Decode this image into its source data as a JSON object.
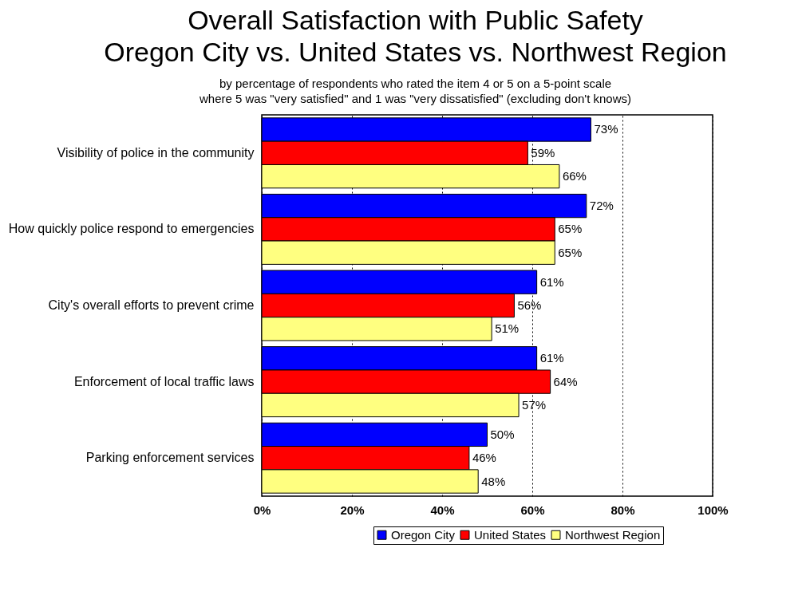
{
  "chart_data": {
    "type": "bar",
    "orientation": "horizontal",
    "title": "Overall Satisfaction with Public Safety\nOregon City vs. United States vs. Northwest Region",
    "subtitle": "by percentage of respondents who rated the item 4 or 5 on a 5-point scale\nwhere 5 was \"very satisfied\" and 1 was \"very dissatisfied\" (excluding don't knows)",
    "categories": [
      "Visibility of police in the community",
      "How quickly police respond to emergencies",
      "City's overall efforts to prevent crime",
      "Enforcement of local traffic laws",
      "Parking enforcement services"
    ],
    "series": [
      {
        "name": "Oregon City",
        "color": "#0000ff",
        "values": [
          73,
          72,
          61,
          61,
          50
        ],
        "value_labels": [
          "73%",
          "72%",
          "61%",
          "61%",
          "50%"
        ]
      },
      {
        "name": "United States",
        "color": "#ff0000",
        "values": [
          59,
          65,
          56,
          64,
          46
        ],
        "value_labels": [
          "59%",
          "65%",
          "56%",
          "64%",
          "46%"
        ]
      },
      {
        "name": "Northwest Region",
        "color": "#ffff80",
        "values": [
          66,
          65,
          51,
          57,
          48
        ],
        "value_labels": [
          "66%",
          "65%",
          "51%",
          "57%",
          "48%"
        ]
      }
    ],
    "xlim": [
      0,
      100
    ],
    "xticks": [
      {
        "value": 0,
        "label": "0%"
      },
      {
        "value": 20,
        "label": "20%"
      },
      {
        "value": 40,
        "label": "40%"
      },
      {
        "value": 60,
        "label": "60%"
      },
      {
        "value": 80,
        "label": "80%"
      },
      {
        "value": 100,
        "label": "100%"
      }
    ],
    "grid": "x",
    "legend": "bottom right"
  }
}
